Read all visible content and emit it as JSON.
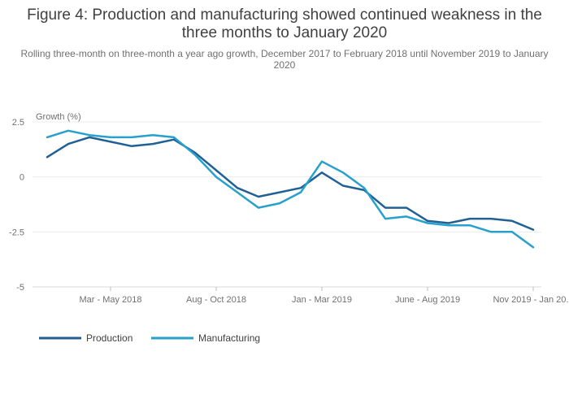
{
  "chart_data": {
    "type": "line",
    "title": "Figure 4: Production and manufacturing showed continued weakness in the three months to January 2020",
    "subtitle": "Rolling three-month on three-month a year ago growth, December 2017 to February 2018 until November 2019 to January 2020",
    "ylabel": "Growth (%)",
    "xlabel": "",
    "ylim": [
      -5,
      2.5
    ],
    "y_ticks": [
      2.5,
      0,
      -2.5,
      -5
    ],
    "y_tick_labels": [
      "2.5",
      "0",
      "-2.5",
      "-5"
    ],
    "x_tick_labels": [
      {
        "index": 3,
        "label": "Mar - May 2018"
      },
      {
        "index": 8,
        "label": "Aug - Oct 2018"
      },
      {
        "index": 13,
        "label": "Jan - Mar 2019"
      },
      {
        "index": 18,
        "label": "June - Aug 2019"
      },
      {
        "index": 23,
        "label": "Nov 2019 - Jan 20..."
      }
    ],
    "grid": true,
    "legend_position": "bottom-left",
    "series": [
      {
        "name": "Production",
        "color": "#206095",
        "values": [
          0.9,
          1.5,
          1.8,
          1.6,
          1.4,
          1.5,
          1.7,
          1.1,
          0.3,
          -0.5,
          -0.9,
          -0.7,
          -0.5,
          0.2,
          -0.4,
          -0.6,
          -1.4,
          -1.4,
          -2.0,
          -2.1,
          -1.9,
          -1.9,
          -2.0,
          -2.4
        ]
      },
      {
        "name": "Manufacturing",
        "color": "#27A0CC",
        "values": [
          1.8,
          2.1,
          1.9,
          1.8,
          1.8,
          1.9,
          1.8,
          1.0,
          0.0,
          -0.7,
          -1.4,
          -1.2,
          -0.7,
          0.7,
          0.2,
          -0.5,
          -1.9,
          -1.8,
          -2.1,
          -2.2,
          -2.2,
          -2.5,
          -2.5,
          -3.2
        ]
      }
    ]
  }
}
